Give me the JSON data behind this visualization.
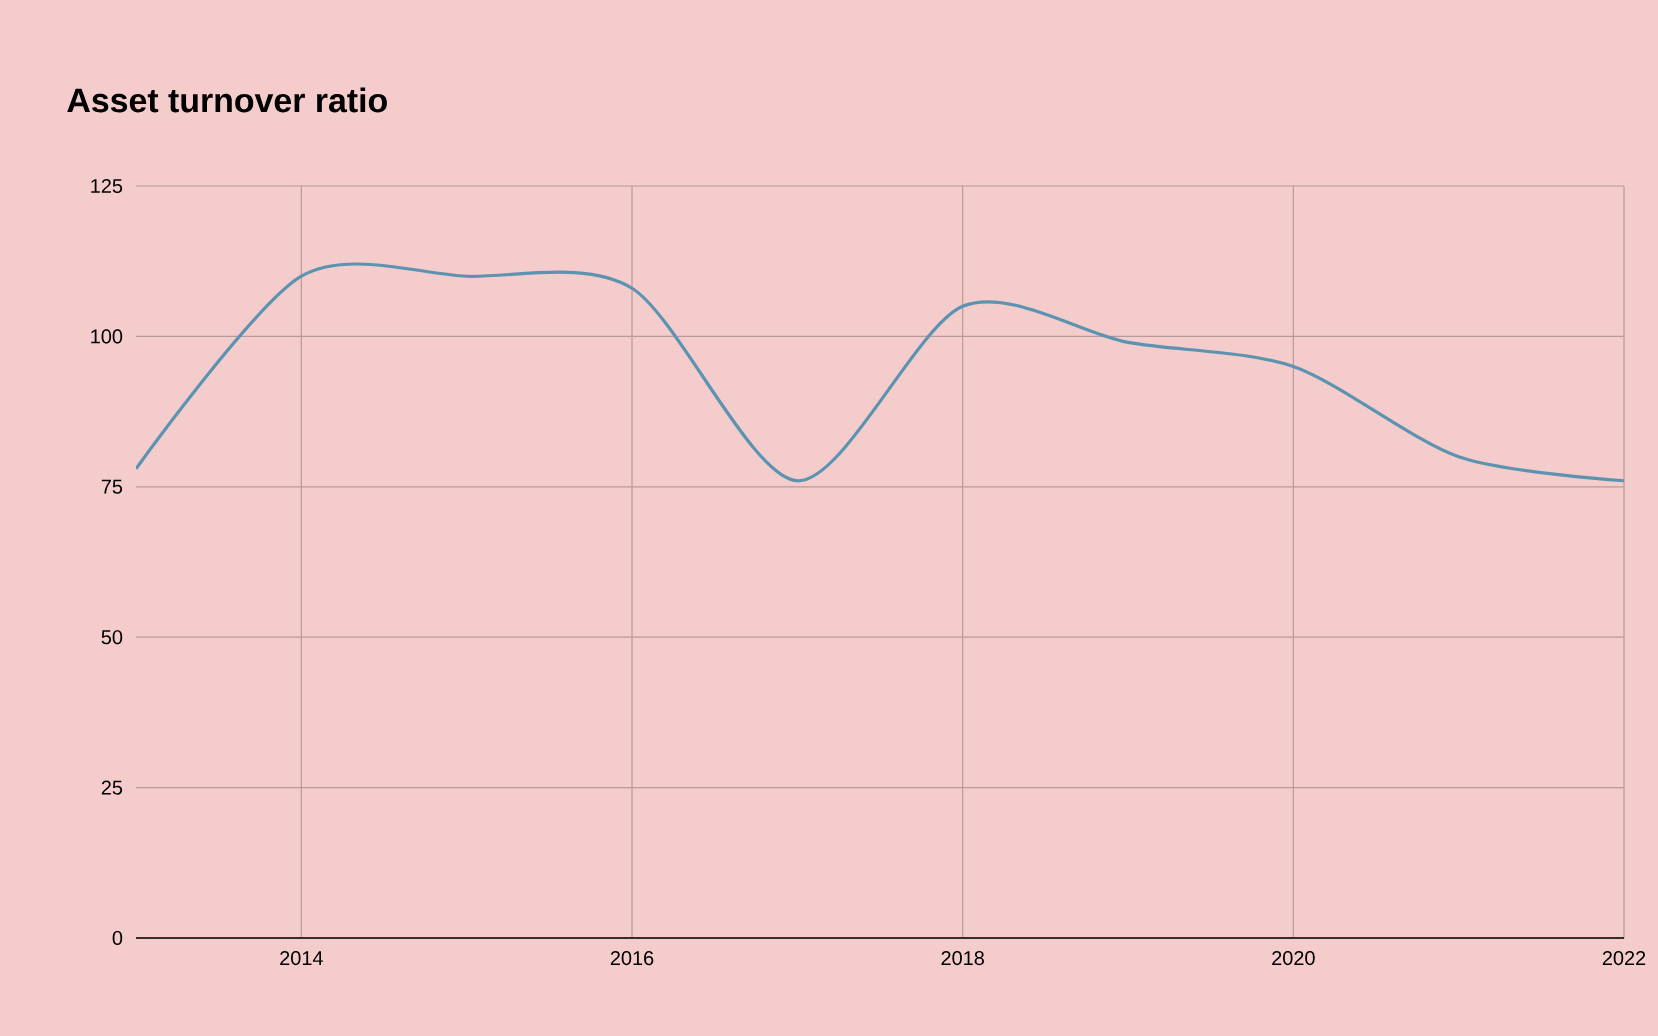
{
  "chart_data": {
    "type": "line",
    "title": "Asset turnover ratio",
    "x": [
      2013,
      2014,
      2015,
      2016,
      2017,
      2018,
      2019,
      2020,
      2021,
      2022
    ],
    "series": [
      {
        "color": "#5b93b0",
        "values": [
          78,
          110,
          110,
          108,
          76,
          105,
          99,
          95,
          80,
          76
        ]
      }
    ],
    "xlim": [
      2013,
      2022
    ],
    "xticks": [
      2014,
      2016,
      2018,
      2020,
      2022
    ],
    "ylim": [
      0,
      125
    ],
    "yticks": [
      0,
      25,
      50,
      75,
      100,
      125
    ],
    "grid": true
  }
}
